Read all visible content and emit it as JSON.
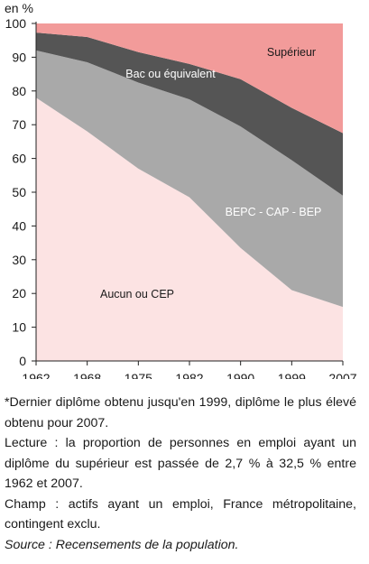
{
  "chart_data": {
    "type": "area",
    "stacked": true,
    "y_unit_label": "en %",
    "ylim": [
      0,
      100
    ],
    "y_ticks": [
      0,
      10,
      20,
      30,
      40,
      50,
      60,
      70,
      80,
      90,
      100
    ],
    "x": [
      "1962",
      "1968",
      "1975",
      "1982",
      "1990",
      "1999",
      "2007"
    ],
    "grid": false,
    "series": [
      {
        "name": "Aucun ou CEP",
        "values": [
          78,
          68,
          57,
          48.5,
          33.5,
          21,
          16
        ],
        "color": "#fce3e3"
      },
      {
        "name": "BEPC - CAP - BEP",
        "values": [
          14,
          20.5,
          25.5,
          29,
          36,
          38.5,
          33
        ],
        "color": "#a9a9a9"
      },
      {
        "name": "Bac ou équivalent",
        "values": [
          5.3,
          7.5,
          9,
          10.5,
          14,
          15.5,
          18.5
        ],
        "color": "#555555"
      },
      {
        "name": "Supérieur",
        "values": [
          2.7,
          4,
          8.5,
          12,
          16.5,
          25,
          32.5
        ],
        "color": "#f29b9a"
      }
    ]
  },
  "notes": {
    "line1": "*Dernier diplôme obtenu jusqu'en 1999, diplôme le plus élevé obtenu pour 2007.",
    "line2": "Lecture : la proportion de personnes en emploi ayant un diplôme du supérieur est passée de 2,7 % à 32,5 % entre 1962 et 2007.",
    "line3": "Champ : actifs ayant un emploi, France métropolitaine, contingent exclu.",
    "source": "Source : Recensements de la population."
  }
}
